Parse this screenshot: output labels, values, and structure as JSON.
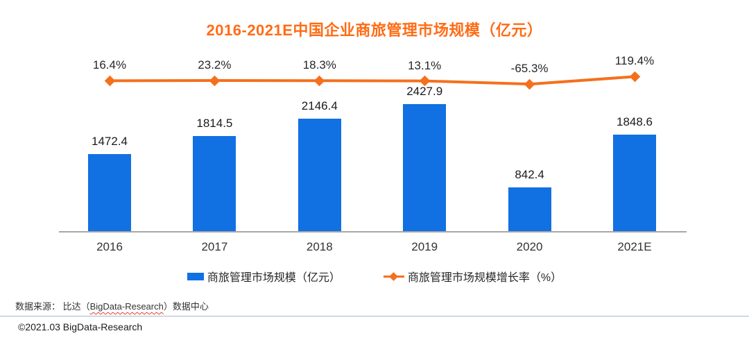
{
  "title": "2016-2021E中国企业商旅管理市场规模（亿元）",
  "chart_data": {
    "type": "bar",
    "subtype": "combo-bar-line",
    "title": "2016-2021E中国企业商旅管理市场规模（亿元）",
    "categories": [
      "2016",
      "2017",
      "2018",
      "2019",
      "2020",
      "2021E"
    ],
    "series": [
      {
        "name": "商旅管理市场规模（亿元）",
        "type": "bar",
        "axis": "primary",
        "values": [
          1472.4,
          1814.5,
          2146.4,
          2427.9,
          842.4,
          1848.6
        ],
        "data_labels": [
          "1472.4",
          "1814.5",
          "2146.4",
          "2427.9",
          "842.4",
          "1848.6"
        ],
        "color": "#1170e2"
      },
      {
        "name": "商旅管理市场规模增长率（%）",
        "type": "line",
        "axis": "secondary",
        "values": [
          16.4,
          23.2,
          18.3,
          13.1,
          -65.3,
          119.4
        ],
        "data_labels": [
          "16.4%",
          "23.2%",
          "18.3%",
          "13.1%",
          "-65.3%",
          "119.4%"
        ],
        "color": "#f5701d",
        "marker": "diamond"
      }
    ],
    "xlabel": "",
    "ylabel": "",
    "grid": false,
    "legend_position": "bottom"
  },
  "legend": {
    "bar_label": "商旅管理市场规模（亿元）",
    "line_label": "商旅管理市场规模增长率（%）"
  },
  "footer": {
    "source_prefix": "数据来源： 比达（",
    "source_brand": "BigData-Research",
    "source_suffix": "）数据中心",
    "copyright": "©2021.03 BigData-Research"
  },
  "colors": {
    "title": "#ff6c15",
    "bar": "#1170e2",
    "line": "#f5701d",
    "axis": "#a6a6a6",
    "divider": "#a3b8cd",
    "text": "#262626"
  }
}
